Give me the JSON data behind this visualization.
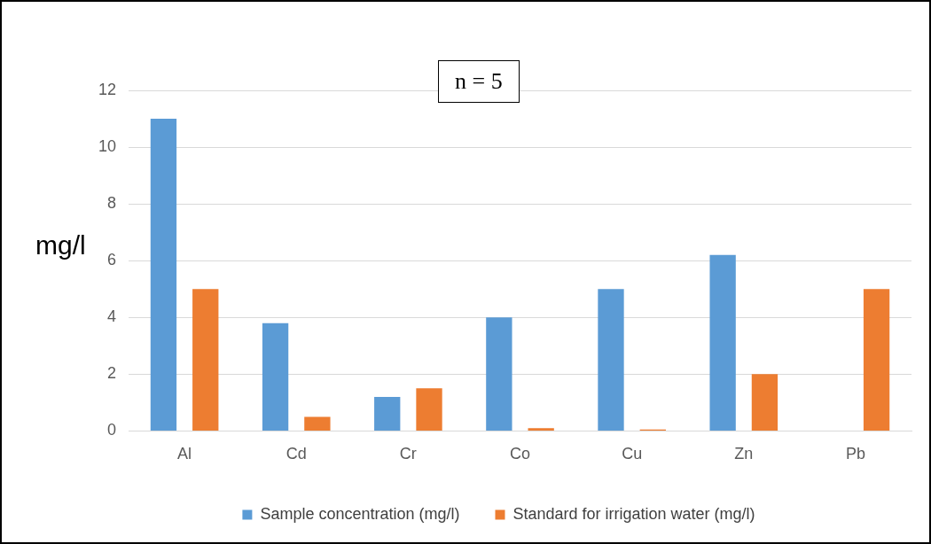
{
  "chart_data": {
    "type": "bar",
    "ylabel": "mg/l",
    "annotations": [
      "n = 5"
    ],
    "categories": [
      "Al",
      "Cd",
      "Cr",
      "Co",
      "Cu",
      "Zn",
      "Pb"
    ],
    "series": [
      {
        "name": "Sample concentration (mg/l)",
        "color": "#5b9bd5",
        "values": [
          11,
          3.8,
          1.2,
          4,
          5,
          6.2,
          null
        ]
      },
      {
        "name": "Standard for irrigation water (mg/l)",
        "color": "#ed7d31",
        "values": [
          5,
          0.5,
          1.5,
          0.1,
          0.05,
          2,
          5
        ]
      }
    ],
    "ylim": [
      0,
      12
    ],
    "yticks": [
      0,
      2,
      4,
      6,
      8,
      10,
      12
    ],
    "grid": "y",
    "legend": "bottom"
  }
}
